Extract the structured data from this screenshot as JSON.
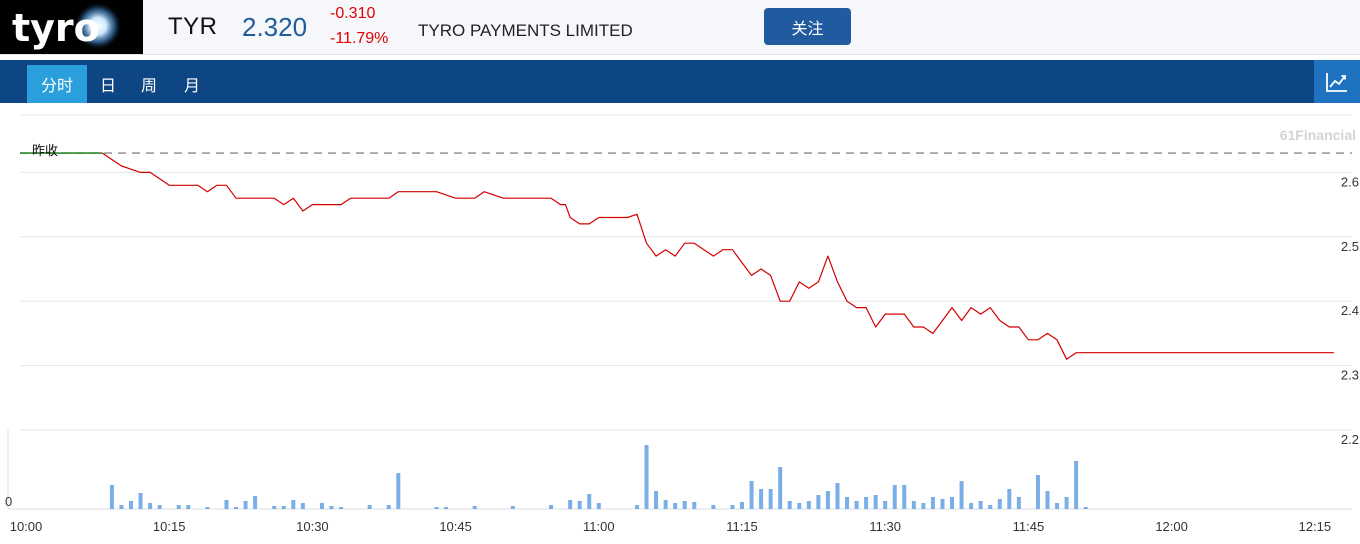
{
  "header": {
    "ticker": "TYR",
    "price": "2.320",
    "change": "-0.310",
    "change_pct": "-11.79%",
    "company": "TYRO PAYMENTS LIMITED",
    "follow_label": "关注",
    "logo_text": "tyro"
  },
  "tabs": [
    {
      "label": "分时",
      "active": true
    },
    {
      "label": "日",
      "active": false
    },
    {
      "label": "周",
      "active": false
    },
    {
      "label": "月",
      "active": false
    }
  ],
  "colors": {
    "header_bg": "#f5f7fa",
    "tabbar": "#0e4585",
    "tab_active": "#2a9fdc",
    "price_blue": "#1f5b9e",
    "down_red": "#e00000",
    "price_line": "#d40000",
    "volume_bar": "#7aaee6",
    "prev_close_segment": "#2e8b2e"
  },
  "icons": {
    "chart_toggle": "line-chart-icon"
  },
  "chart_data": {
    "type": "line",
    "watermark": "61Financial",
    "prev_close_label": "昨收",
    "prev_close": 2.63,
    "y_ticks": [
      2.6,
      2.5,
      2.4,
      2.3,
      2.2
    ],
    "y_tick_labels": [
      "2.6",
      "2.5",
      "2.4",
      "2.3",
      "2.2"
    ],
    "ylim": [
      2.2,
      2.7
    ],
    "x_ticks": [
      "10:00",
      "10:15",
      "10:30",
      "10:45",
      "11:00",
      "11:15",
      "11:30",
      "11:45",
      "12:00",
      "12:15"
    ],
    "x_range_minutes": [
      0,
      137
    ],
    "volume_axis_label": "0",
    "price": [
      [
        0,
        2.63
      ],
      [
        8,
        2.63
      ],
      [
        10,
        2.61
      ],
      [
        12,
        2.6
      ],
      [
        13,
        2.6
      ],
      [
        14,
        2.59
      ],
      [
        15,
        2.58
      ],
      [
        17,
        2.58
      ],
      [
        18,
        2.58
      ],
      [
        19,
        2.57
      ],
      [
        20,
        2.58
      ],
      [
        21,
        2.58
      ],
      [
        22,
        2.56
      ],
      [
        23,
        2.56
      ],
      [
        26,
        2.56
      ],
      [
        27,
        2.55
      ],
      [
        28,
        2.56
      ],
      [
        29,
        2.54
      ],
      [
        30,
        2.55
      ],
      [
        33,
        2.55
      ],
      [
        34,
        2.56
      ],
      [
        38,
        2.56
      ],
      [
        39,
        2.57
      ],
      [
        43,
        2.57
      ],
      [
        45,
        2.56
      ],
      [
        47,
        2.56
      ],
      [
        48,
        2.57
      ],
      [
        50,
        2.56
      ],
      [
        55,
        2.56
      ],
      [
        56,
        2.55
      ],
      [
        56.5,
        2.55
      ],
      [
        57,
        2.53
      ],
      [
        58,
        2.52
      ],
      [
        59,
        2.52
      ],
      [
        60,
        2.53
      ],
      [
        63,
        2.53
      ],
      [
        64,
        2.535
      ],
      [
        65,
        2.49
      ],
      [
        66,
        2.47
      ],
      [
        67,
        2.48
      ],
      [
        68,
        2.47
      ],
      [
        69,
        2.49
      ],
      [
        70,
        2.49
      ],
      [
        72,
        2.47
      ],
      [
        73,
        2.48
      ],
      [
        74,
        2.48
      ],
      [
        75,
        2.46
      ],
      [
        76,
        2.44
      ],
      [
        77,
        2.45
      ],
      [
        78,
        2.44
      ],
      [
        79,
        2.4
      ],
      [
        80,
        2.4
      ],
      [
        81,
        2.43
      ],
      [
        82,
        2.42
      ],
      [
        83,
        2.43
      ],
      [
        84,
        2.47
      ],
      [
        85,
        2.43
      ],
      [
        86,
        2.4
      ],
      [
        87,
        2.39
      ],
      [
        88,
        2.39
      ],
      [
        89,
        2.36
      ],
      [
        90,
        2.38
      ],
      [
        92,
        2.38
      ],
      [
        93,
        2.36
      ],
      [
        94,
        2.36
      ],
      [
        95,
        2.35
      ],
      [
        96,
        2.37
      ],
      [
        97,
        2.39
      ],
      [
        98,
        2.37
      ],
      [
        99,
        2.39
      ],
      [
        100,
        2.38
      ],
      [
        101,
        2.39
      ],
      [
        102,
        2.37
      ],
      [
        103,
        2.36
      ],
      [
        104,
        2.36
      ],
      [
        105,
        2.34
      ],
      [
        106,
        2.34
      ],
      [
        107,
        2.35
      ],
      [
        108,
        2.34
      ],
      [
        109,
        2.31
      ],
      [
        110,
        2.32
      ],
      [
        137,
        2.32
      ]
    ],
    "volume": [
      [
        9,
        24
      ],
      [
        10,
        4
      ],
      [
        11,
        8
      ],
      [
        12,
        16
      ],
      [
        13,
        6
      ],
      [
        14,
        4
      ],
      [
        16,
        4
      ],
      [
        17,
        4
      ],
      [
        19,
        2
      ],
      [
        21,
        9
      ],
      [
        22,
        2
      ],
      [
        23,
        8
      ],
      [
        24,
        13
      ],
      [
        26,
        3
      ],
      [
        27,
        3
      ],
      [
        28,
        9
      ],
      [
        29,
        6
      ],
      [
        31,
        6
      ],
      [
        32,
        3
      ],
      [
        33,
        2
      ],
      [
        36,
        4
      ],
      [
        38,
        4
      ],
      [
        39,
        36
      ],
      [
        43,
        2
      ],
      [
        44,
        2
      ],
      [
        47,
        3
      ],
      [
        51,
        3
      ],
      [
        55,
        4
      ],
      [
        57,
        9
      ],
      [
        58,
        8
      ],
      [
        59,
        15
      ],
      [
        60,
        6
      ],
      [
        64,
        4
      ],
      [
        65,
        64
      ],
      [
        66,
        18
      ],
      [
        67,
        9
      ],
      [
        68,
        6
      ],
      [
        69,
        8
      ],
      [
        70,
        7
      ],
      [
        72,
        4
      ],
      [
        74,
        4
      ],
      [
        75,
        7
      ],
      [
        76,
        28
      ],
      [
        77,
        20
      ],
      [
        78,
        20
      ],
      [
        79,
        42
      ],
      [
        80,
        8
      ],
      [
        81,
        6
      ],
      [
        82,
        8
      ],
      [
        83,
        14
      ],
      [
        84,
        18
      ],
      [
        85,
        26
      ],
      [
        86,
        12
      ],
      [
        87,
        8
      ],
      [
        88,
        12
      ],
      [
        89,
        14
      ],
      [
        90,
        8
      ],
      [
        91,
        24
      ],
      [
        92,
        24
      ],
      [
        93,
        8
      ],
      [
        94,
        6
      ],
      [
        95,
        12
      ],
      [
        96,
        10
      ],
      [
        97,
        12
      ],
      [
        98,
        28
      ],
      [
        99,
        6
      ],
      [
        100,
        8
      ],
      [
        101,
        4
      ],
      [
        102,
        10
      ],
      [
        103,
        20
      ],
      [
        104,
        12
      ],
      [
        106,
        34
      ],
      [
        107,
        18
      ],
      [
        108,
        6
      ],
      [
        109,
        12
      ],
      [
        110,
        48
      ],
      [
        111,
        2
      ]
    ]
  }
}
